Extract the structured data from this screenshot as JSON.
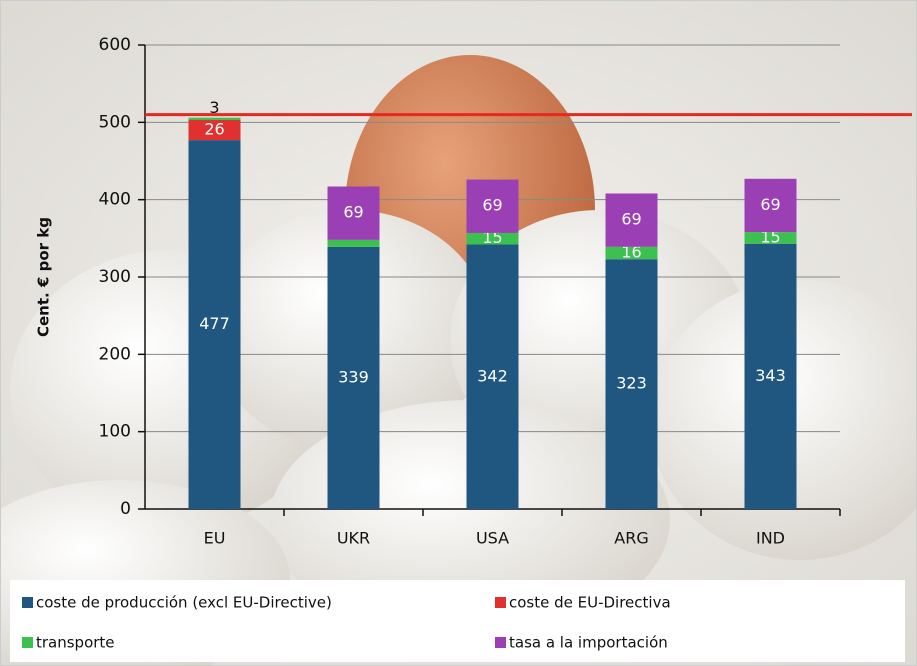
{
  "chart_data": {
    "type": "stacked_bar",
    "y_label": "Cent. € por kg",
    "categories": [
      "EU",
      "UKR",
      "USA",
      "ARG",
      "IND"
    ],
    "series": [
      {
        "name": "coste de producción (excl EU-Directive)",
        "color": "#1f5780",
        "values": [
          477,
          339,
          342,
          323,
          343
        ]
      },
      {
        "name": "coste de EU-Directiva",
        "color": "#e03030",
        "values": [
          26,
          null,
          null,
          null,
          null
        ]
      },
      {
        "name": "transporte",
        "color": "#3cc050",
        "values": [
          3,
          9,
          15,
          16,
          15
        ]
      },
      {
        "name": "tasa a la importación",
        "color": "#9b3fb5",
        "values": [
          null,
          69,
          69,
          69,
          69
        ]
      }
    ],
    "reference_line": {
      "value": 510,
      "color": "#e8281e"
    },
    "ylim": [
      0,
      600
    ],
    "yticks": [
      0,
      100,
      200,
      300,
      400,
      500,
      600
    ],
    "grid": true
  }
}
